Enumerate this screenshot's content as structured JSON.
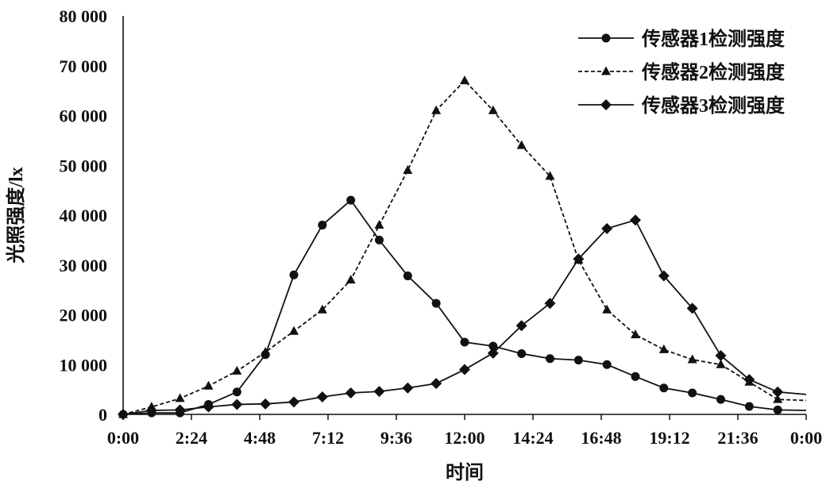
{
  "chart_data": {
    "type": "line",
    "xlabel": "时间",
    "ylabel": "光照强度/lx",
    "ylim": [
      0,
      80000
    ],
    "yticks": [
      "0",
      "10 000",
      "20 000",
      "30 000",
      "40 000",
      "50 000",
      "60 000",
      "70 000",
      "80 000"
    ],
    "xlim": [
      0,
      24
    ],
    "xticks": [
      "0:00",
      "2:24",
      "4:48",
      "7:12",
      "9:36",
      "12:00",
      "14:24",
      "16:48",
      "19:12",
      "21:36",
      "0:00"
    ],
    "x": [
      0,
      1,
      2,
      3,
      4,
      5,
      6,
      7,
      8,
      9,
      10,
      11,
      12,
      13,
      14,
      15,
      16,
      17,
      18,
      19,
      20,
      21,
      22,
      23
    ],
    "legend_position": "top-right",
    "grid": false,
    "series": [
      {
        "name": "传感器1检测强度",
        "marker": "circle",
        "dash": "solid",
        "values": [
          0,
          300,
          300,
          2000,
          4500,
          12000,
          28000,
          38000,
          43000,
          35000,
          27800,
          22300,
          14500,
          13700,
          12200,
          11200,
          10900,
          10000,
          7600,
          5300,
          4300,
          3000,
          1600,
          900
        ],
        "tail_value": 800
      },
      {
        "name": "传感器2检测强度",
        "marker": "triangle",
        "dash": "dashed",
        "values": [
          0,
          1500,
          3200,
          5700,
          8700,
          12500,
          16700,
          21000,
          27000,
          38000,
          49000,
          61000,
          67000,
          61000,
          54000,
          47800,
          31000,
          21000,
          16000,
          13000,
          11000,
          10000,
          6500,
          3000
        ],
        "tail_value": 2800
      },
      {
        "name": "传感器3检测强度",
        "marker": "diamond",
        "dash": "solid",
        "values": [
          0,
          800,
          900,
          1500,
          2000,
          2100,
          2500,
          3500,
          4300,
          4600,
          5300,
          6200,
          9000,
          12300,
          17800,
          22300,
          31200,
          37300,
          39000,
          27800,
          21300,
          11800,
          7000,
          4500
        ],
        "tail_value": 4000
      }
    ]
  }
}
